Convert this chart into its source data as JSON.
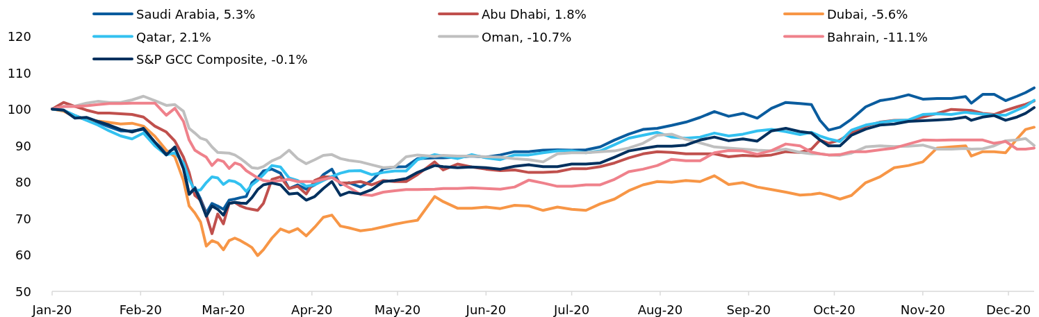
{
  "chart_data": {
    "type": "line",
    "x": [
      "2020-01-01",
      "2020-01-05",
      "2020-01-09",
      "2020-01-13",
      "2020-01-17",
      "2020-01-21",
      "2020-01-25",
      "2020-01-29",
      "2020-02-02",
      "2020-02-06",
      "2020-02-10",
      "2020-02-13",
      "2020-02-16",
      "2020-02-18",
      "2020-02-20",
      "2020-02-22",
      "2020-02-24",
      "2020-02-26",
      "2020-02-28",
      "2020-03-01",
      "2020-03-03",
      "2020-03-05",
      "2020-03-07",
      "2020-03-09",
      "2020-03-11",
      "2020-03-13",
      "2020-03-15",
      "2020-03-18",
      "2020-03-21",
      "2020-03-24",
      "2020-03-27",
      "2020-03-30",
      "2020-04-02",
      "2020-04-05",
      "2020-04-08",
      "2020-04-11",
      "2020-04-14",
      "2020-04-18",
      "2020-04-22",
      "2020-04-26",
      "2020-04-30",
      "2020-05-04",
      "2020-05-08",
      "2020-05-14",
      "2020-05-17",
      "2020-05-22",
      "2020-05-27",
      "2020-06-01",
      "2020-06-06",
      "2020-06-11",
      "2020-06-16",
      "2020-06-21",
      "2020-06-26",
      "2020-07-01",
      "2020-07-06",
      "2020-07-11",
      "2020-07-16",
      "2020-07-21",
      "2020-07-26",
      "2020-07-31",
      "2020-08-05",
      "2020-08-10",
      "2020-08-15",
      "2020-08-20",
      "2020-08-25",
      "2020-08-30",
      "2020-09-04",
      "2020-09-09",
      "2020-09-14",
      "2020-09-19",
      "2020-09-23",
      "2020-09-26",
      "2020-09-29",
      "2020-10-03",
      "2020-10-07",
      "2020-10-12",
      "2020-10-17",
      "2020-10-22",
      "2020-10-27",
      "2020-11-01",
      "2020-11-06",
      "2020-11-11",
      "2020-11-16",
      "2020-11-18",
      "2020-11-22",
      "2020-11-26",
      "2020-11-30",
      "2020-12-04",
      "2020-12-07",
      "2020-12-10"
    ],
    "series": [
      {
        "name": "Saudi Arabia, 5.3%",
        "color": "#0a5c9e",
        "values": [
          100,
          99.6,
          98.2,
          97.0,
          96.3,
          95.1,
          94.0,
          94.0,
          94.4,
          90.9,
          88.0,
          89.2,
          84.5,
          76.6,
          78.5,
          75.3,
          71.5,
          74.1,
          73.4,
          72.5,
          75.0,
          75.3,
          75.7,
          76.0,
          79.8,
          81.1,
          83.0,
          83.5,
          82.4,
          78.2,
          79.2,
          78.0,
          79.2,
          82.0,
          83.5,
          79.2,
          79.8,
          78.6,
          80.4,
          83.6,
          84.1,
          84.2,
          86.4,
          86.6,
          86.6,
          86.8,
          87.1,
          86.8,
          87.4,
          88.3,
          88.3,
          88.7,
          88.8,
          88.7,
          88.8,
          89.6,
          91.5,
          93.1,
          94.4,
          94.7,
          95.5,
          96.4,
          97.7,
          99.3,
          98.0,
          98.8,
          97.5,
          100.2,
          101.8,
          101.5,
          101.2,
          96.9,
          94.2,
          95.0,
          97.2,
          100.6,
          102.3,
          102.9,
          103.9,
          102.7,
          102.9,
          102.9,
          103.4,
          101.6,
          104.0,
          104.0,
          102.3,
          103.5,
          104.5,
          105.8
        ]
      },
      {
        "name": "Abu Dhabi, 1.8%",
        "color": "#c0504d",
        "values": [
          100,
          101.8,
          100.7,
          99.7,
          98.9,
          98.9,
          98.7,
          98.5,
          97.8,
          95.3,
          93.7,
          91.2,
          86.8,
          82.6,
          76.3,
          75.0,
          70.9,
          65.8,
          71.2,
          68.5,
          74.1,
          74.4,
          73.4,
          72.8,
          72.5,
          72.2,
          74.1,
          80.7,
          81.4,
          78.2,
          78.8,
          76.7,
          80.4,
          81.4,
          81.4,
          79.7,
          79.7,
          80.1,
          79.2,
          80.4,
          80.1,
          80.1,
          82.0,
          85.5,
          83.3,
          84.9,
          84.1,
          83.5,
          83.1,
          83.3,
          82.6,
          82.6,
          82.8,
          83.6,
          83.6,
          84.2,
          85.2,
          86.6,
          87.7,
          88.3,
          88.1,
          87.7,
          87.7,
          87.7,
          86.9,
          87.3,
          87.1,
          87.4,
          88.3,
          88.1,
          89.0,
          91.5,
          90.6,
          91.5,
          93.4,
          95.3,
          96.4,
          96.9,
          96.9,
          97.8,
          98.8,
          99.9,
          99.7,
          99.6,
          98.8,
          98.5,
          99.6,
          100.6,
          101.3,
          102.2
        ]
      },
      {
        "name": "Dubai, -5.6%",
        "color": "#f79646",
        "values": [
          100,
          99.4,
          97.8,
          97.2,
          96.7,
          96.3,
          95.9,
          96.1,
          95.3,
          92.5,
          88.7,
          86.9,
          80.4,
          73.4,
          71.5,
          69.0,
          62.4,
          63.9,
          63.3,
          61.4,
          63.9,
          64.6,
          63.9,
          63.0,
          62.0,
          59.8,
          61.4,
          64.6,
          67.1,
          66.2,
          67.2,
          65.2,
          67.6,
          70.3,
          70.9,
          67.9,
          67.4,
          66.6,
          67.0,
          67.7,
          68.4,
          69.0,
          69.5,
          76.0,
          74.6,
          72.8,
          72.8,
          73.1,
          72.7,
          73.6,
          73.4,
          72.2,
          73.1,
          72.5,
          72.2,
          74.0,
          75.3,
          77.6,
          79.2,
          80.1,
          79.9,
          80.4,
          80.1,
          81.7,
          79.3,
          79.8,
          78.6,
          77.9,
          77.2,
          76.4,
          76.6,
          76.9,
          76.3,
          75.3,
          76.3,
          79.8,
          81.4,
          83.9,
          84.5,
          85.5,
          89.3,
          89.6,
          89.9,
          87.1,
          88.3,
          88.3,
          88.0,
          91.8,
          94.4,
          95.0
        ]
      },
      {
        "name": "Qatar, 2.1%",
        "color": "#33c1f0",
        "values": [
          100,
          99.7,
          98.2,
          96.9,
          95.6,
          94.0,
          92.6,
          91.8,
          93.4,
          89.9,
          87.4,
          88.0,
          85.2,
          80.7,
          77.6,
          77.8,
          79.8,
          81.4,
          81.1,
          79.3,
          80.4,
          80.1,
          79.2,
          77.4,
          79.2,
          80.4,
          82.0,
          84.5,
          84.1,
          81.1,
          80.4,
          78.8,
          79.2,
          80.4,
          81.5,
          82.4,
          83.0,
          83.1,
          82.0,
          82.6,
          83.0,
          83.0,
          86.1,
          87.5,
          87.1,
          86.4,
          87.5,
          86.6,
          86.1,
          87.4,
          87.4,
          88.0,
          88.5,
          88.5,
          88.0,
          88.5,
          90.2,
          92.0,
          92.8,
          93.6,
          92.3,
          92.0,
          92.3,
          93.4,
          92.6,
          93.1,
          94.0,
          94.4,
          93.8,
          93.0,
          93.6,
          92.6,
          91.8,
          91.1,
          94.2,
          95.6,
          96.3,
          96.8,
          97.0,
          98.5,
          98.7,
          98.5,
          99.1,
          98.9,
          98.6,
          98.3,
          98.3,
          99.7,
          100.7,
          102.4
        ]
      },
      {
        "name": "Oman, -10.7%",
        "color": "#bfbfbf",
        "values": [
          100,
          100.7,
          100.8,
          101.6,
          102.1,
          101.8,
          101.8,
          102.5,
          103.5,
          102.3,
          101.0,
          101.2,
          99.4,
          94.7,
          93.4,
          92.0,
          91.5,
          89.6,
          88.1,
          88.0,
          87.9,
          87.4,
          86.4,
          85.2,
          83.9,
          83.7,
          84.2,
          85.8,
          86.8,
          88.7,
          86.4,
          85.0,
          86.1,
          87.3,
          87.5,
          86.4,
          85.9,
          85.5,
          84.7,
          83.9,
          84.1,
          86.9,
          87.4,
          87.0,
          87.3,
          87.1,
          87.1,
          86.9,
          86.8,
          86.4,
          86.1,
          85.5,
          87.7,
          88.0,
          88.0,
          88.3,
          88.5,
          89.3,
          90.6,
          92.8,
          93.1,
          91.7,
          90.7,
          89.6,
          89.3,
          89.0,
          88.7,
          88.5,
          89.0,
          88.1,
          87.7,
          87.7,
          87.4,
          87.3,
          87.9,
          89.6,
          89.9,
          89.7,
          89.8,
          90.1,
          89.0,
          89.0,
          89.2,
          89.0,
          89.1,
          89.9,
          91.3,
          91.5,
          91.9,
          90.0
        ]
      },
      {
        "name": "Bahrain, -11.1%",
        "color": "#ef818b",
        "values": [
          100,
          100.7,
          100.7,
          100.9,
          101.2,
          101.5,
          101.5,
          101.6,
          101.6,
          101.6,
          98.3,
          100.2,
          96.6,
          91.5,
          88.7,
          87.7,
          86.8,
          84.5,
          86.1,
          85.6,
          83.7,
          85.2,
          84.7,
          83.1,
          82.1,
          81.1,
          80.4,
          80.1,
          80.4,
          80.7,
          80.1,
          80.1,
          80.1,
          80.7,
          81.2,
          79.8,
          78.5,
          76.6,
          76.3,
          77.2,
          77.6,
          77.9,
          77.9,
          78.0,
          78.2,
          78.2,
          78.4,
          78.2,
          78.0,
          78.6,
          80.5,
          79.7,
          78.8,
          78.8,
          79.2,
          79.2,
          80.7,
          82.8,
          83.5,
          84.5,
          86.2,
          85.8,
          85.8,
          88.0,
          88.6,
          88.5,
          87.6,
          88.6,
          90.4,
          89.9,
          88.2,
          87.7,
          87.4,
          87.5,
          88.3,
          88.3,
          88.8,
          89.3,
          90.4,
          91.5,
          91.4,
          91.5,
          91.5,
          91.5,
          91.5,
          90.6,
          91.1,
          89.0,
          89.0,
          89.3
        ]
      },
      {
        "name": "S&P GCC Composite, -0.1%",
        "color": "#00305e",
        "values": [
          100,
          99.7,
          97.5,
          97.7,
          96.6,
          95.6,
          94.4,
          93.7,
          94.7,
          90.9,
          87.4,
          89.6,
          83.6,
          76.6,
          78.2,
          74.7,
          70.6,
          73.4,
          72.5,
          70.9,
          74.1,
          74.4,
          74.2,
          74.1,
          75.7,
          77.9,
          79.2,
          79.7,
          79.2,
          76.7,
          76.9,
          75.0,
          76.0,
          78.2,
          80.1,
          76.3,
          77.2,
          76.7,
          77.9,
          80.1,
          80.4,
          80.9,
          82.6,
          84.5,
          84.2,
          83.9,
          84.1,
          83.9,
          83.5,
          84.3,
          84.7,
          84.2,
          84.2,
          84.9,
          84.9,
          85.2,
          86.8,
          88.5,
          89.2,
          89.8,
          89.8,
          90.1,
          91.5,
          92.3,
          91.3,
          91.8,
          91.2,
          94.0,
          94.7,
          93.8,
          93.4,
          91.5,
          89.9,
          89.9,
          92.8,
          94.5,
          95.6,
          95.9,
          96.6,
          96.8,
          97.0,
          97.2,
          97.8,
          96.9,
          97.8,
          98.2,
          96.9,
          97.8,
          98.8,
          100.4
        ]
      }
    ],
    "xlim": [
      "2020-01-01",
      "2020-12-10"
    ],
    "xticks": [
      {
        "value": "2020-01-01",
        "label": "Jan-20"
      },
      {
        "value": "2020-02-01",
        "label": "Feb-20"
      },
      {
        "value": "2020-03-01",
        "label": "Mar-20"
      },
      {
        "value": "2020-04-01",
        "label": "Apr-20"
      },
      {
        "value": "2020-05-01",
        "label": "May-20"
      },
      {
        "value": "2020-06-01",
        "label": "Jun-20"
      },
      {
        "value": "2020-07-01",
        "label": "Jul-20"
      },
      {
        "value": "2020-08-01",
        "label": "Aug-20"
      },
      {
        "value": "2020-09-01",
        "label": "Sep-20"
      },
      {
        "value": "2020-10-01",
        "label": "Oct-20"
      },
      {
        "value": "2020-11-01",
        "label": "Nov-20"
      },
      {
        "value": "2020-12-01",
        "label": "Dec-20"
      }
    ],
    "ylim": [
      50,
      120
    ],
    "yticks": [
      50,
      60,
      70,
      80,
      90,
      100,
      110,
      120
    ],
    "legend": "top"
  }
}
